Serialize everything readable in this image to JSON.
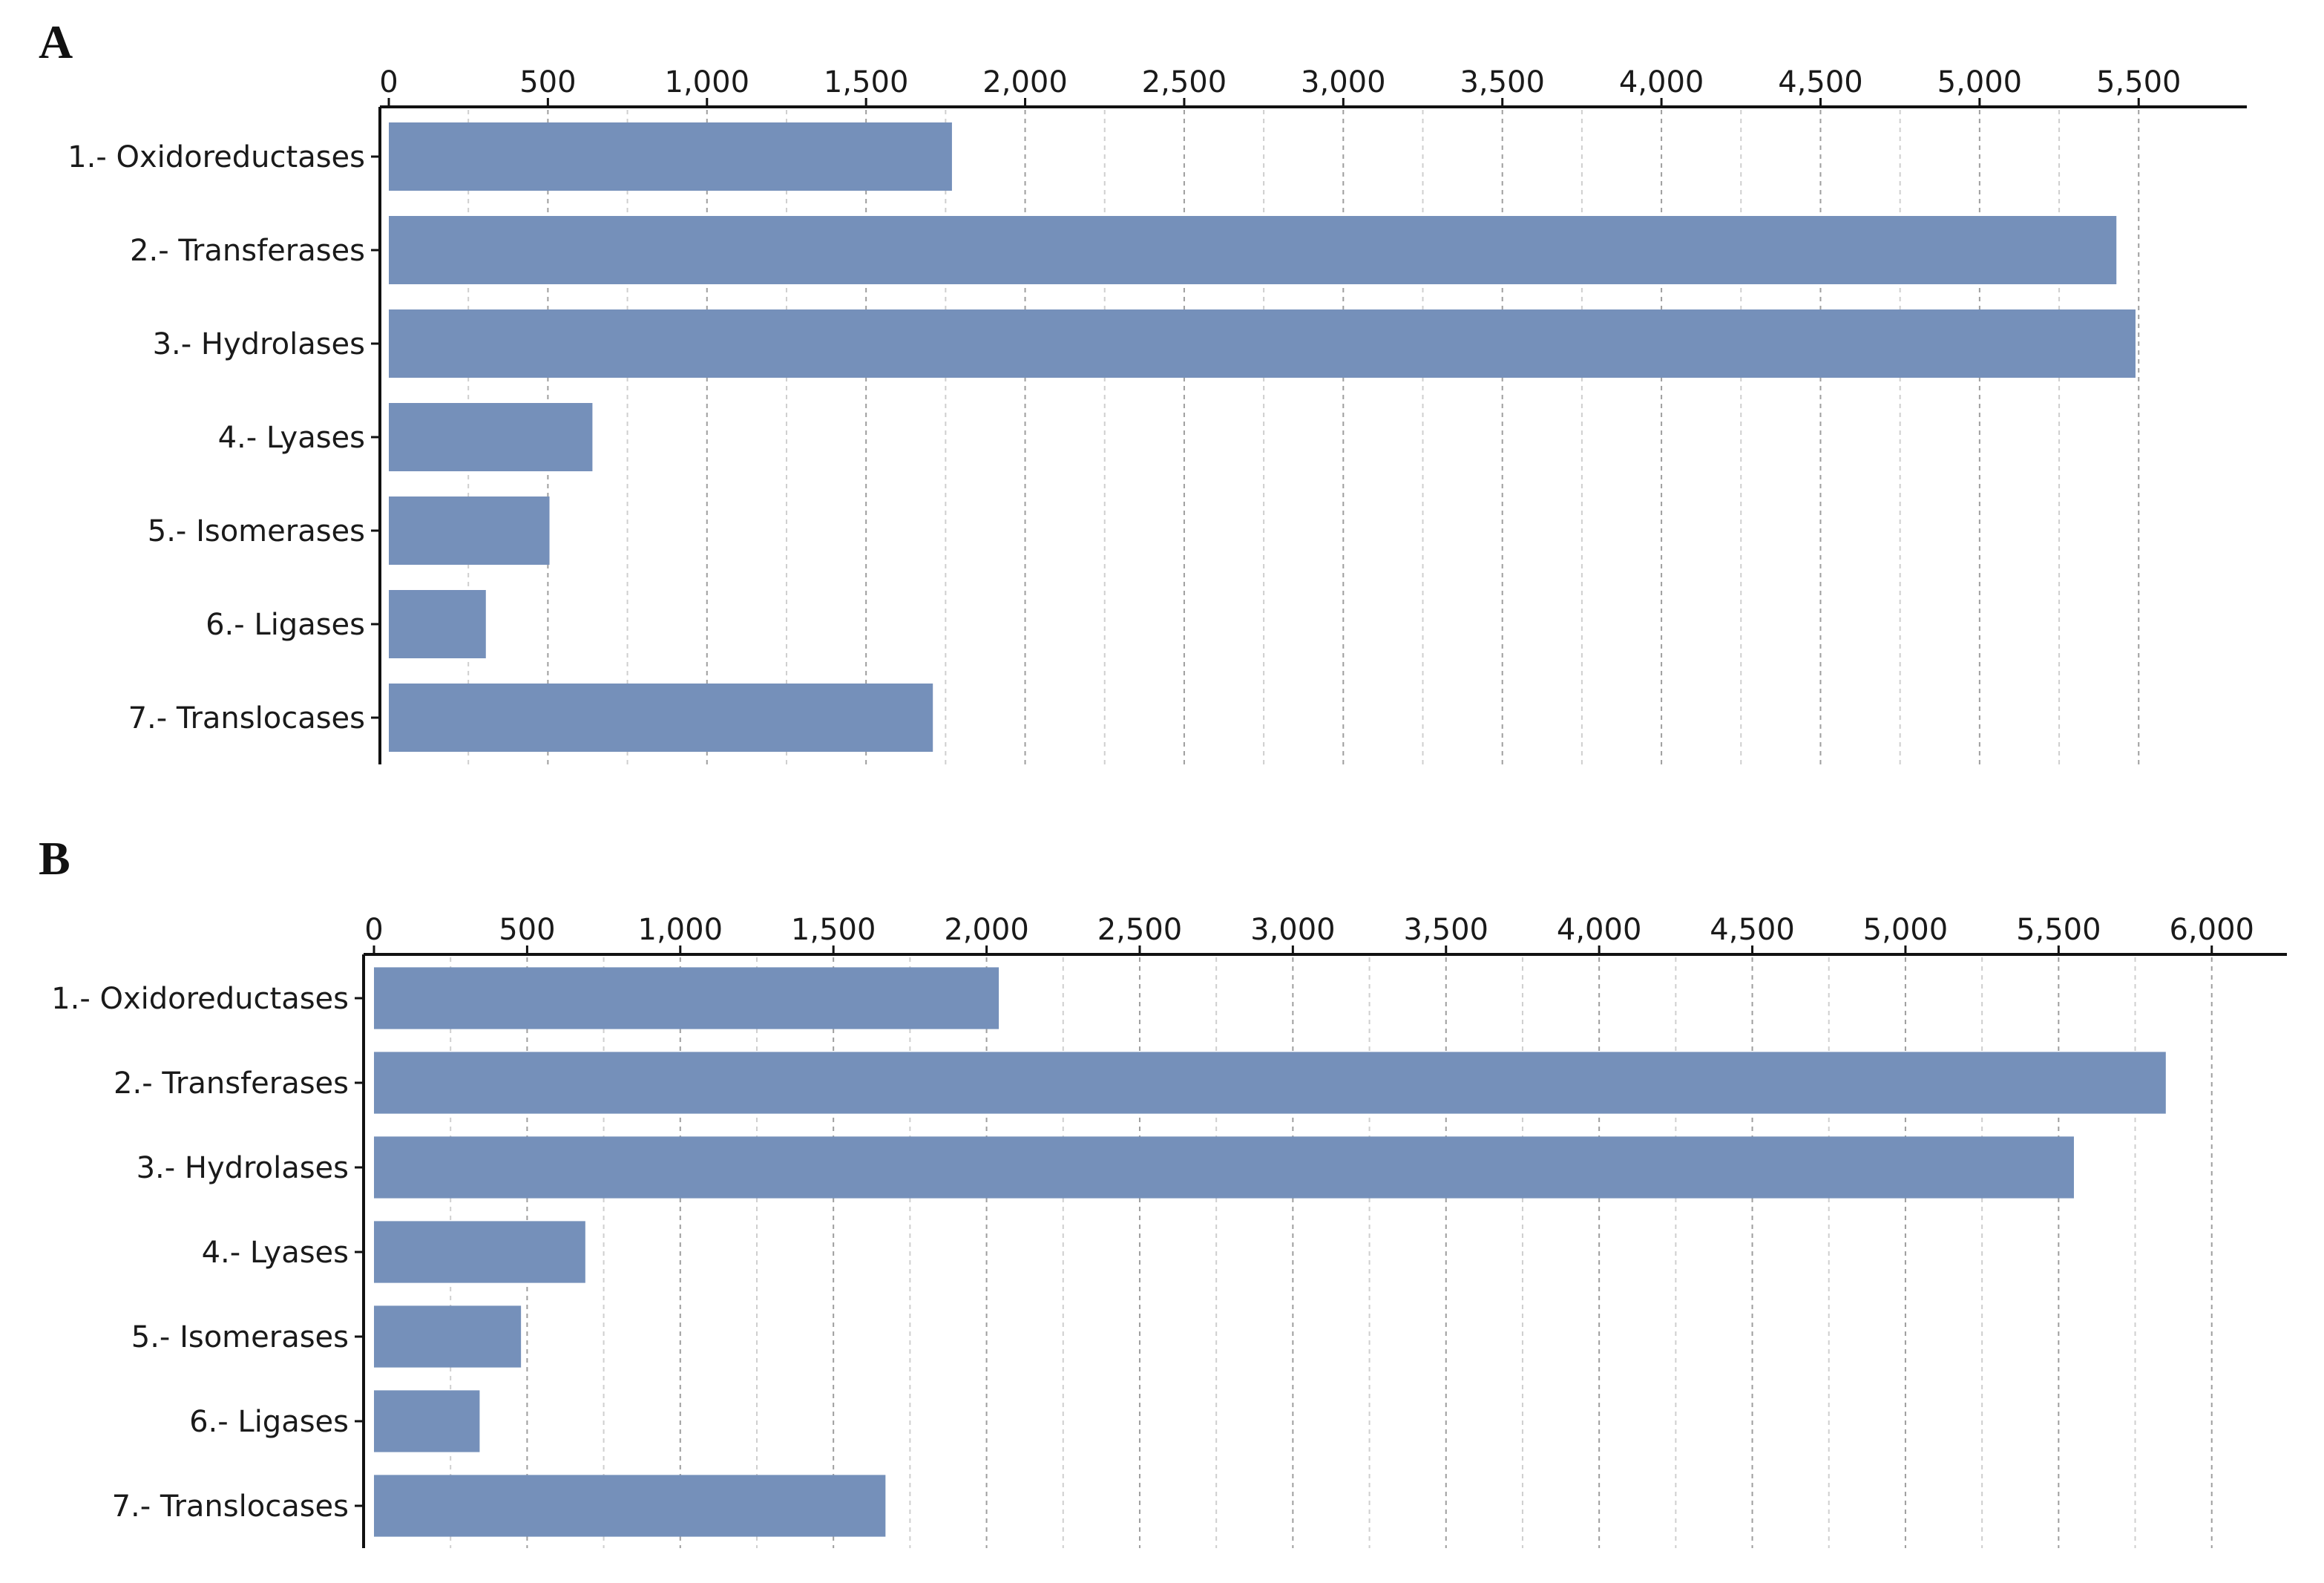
{
  "chart_data": [
    {
      "panel": "A",
      "type": "bar",
      "orientation": "horizontal",
      "x_axis_position": "top",
      "categories": [
        "1.- Oxidoreductases",
        "2.- Transferases",
        "3.- Hydrolases",
        "4.- Lyases",
        "5.- Isomerases",
        "6.- Ligases",
        "7.- Translocases"
      ],
      "values": [
        1770,
        5430,
        5490,
        640,
        505,
        305,
        1710
      ],
      "xlim": [
        0,
        5700
      ],
      "xticks": [
        0,
        500,
        1000,
        1500,
        2000,
        2500,
        3000,
        3500,
        4000,
        4500,
        5000,
        5500
      ],
      "xtick_labels": [
        "0",
        "500",
        "1,000",
        "1,500",
        "2,000",
        "2,500",
        "3,000",
        "3,500",
        "4,000",
        "4,500",
        "5,000",
        "5,500"
      ],
      "grid": true,
      "bar_color": "#7590ba",
      "title": "",
      "xlabel": "",
      "ylabel": ""
    },
    {
      "panel": "B",
      "type": "bar",
      "orientation": "horizontal",
      "x_axis_position": "top",
      "categories": [
        "1.- Oxidoreductases",
        "2.- Transferases",
        "3.- Hydrolases",
        "4.- Lyases",
        "5.- Isomerases",
        "6.- Ligases",
        "7.- Translocases"
      ],
      "values": [
        2040,
        5850,
        5550,
        690,
        480,
        345,
        1670
      ],
      "xlim": [
        0,
        6100
      ],
      "xticks": [
        0,
        500,
        1000,
        1500,
        2000,
        2500,
        3000,
        3500,
        4000,
        4500,
        5000,
        5500,
        6000
      ],
      "xtick_labels": [
        "0",
        "500",
        "1,000",
        "1,500",
        "2,000",
        "2,500",
        "3,000",
        "3,500",
        "4,000",
        "4,500",
        "5,000",
        "5,500",
        "6,000"
      ],
      "grid": true,
      "bar_color": "#7590ba",
      "title": "",
      "xlabel": "",
      "ylabel": ""
    }
  ]
}
